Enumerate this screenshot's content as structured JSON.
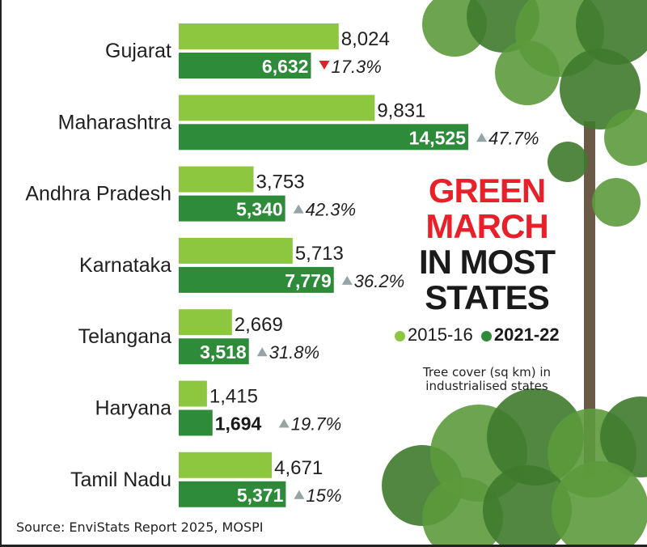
{
  "title": {
    "line1": "GREEN",
    "line2": "MARCH",
    "line3": "IN MOST",
    "line4": "STATES"
  },
  "subtitle": "Tree cover (sq km)  in industrialised states",
  "source": "Source: EnviStats Report 2025, MOSPI",
  "colors": {
    "series_2015": "#8dc63f",
    "series_2021": "#2e8b3a",
    "down": "#e0202a",
    "up": "#95a5a6",
    "title_red": "#e8202a"
  },
  "chart_data": {
    "type": "bar",
    "orientation": "horizontal",
    "categories": [
      "Gujarat",
      "Maharashtra",
      "Andhra Pradesh",
      "Karnataka",
      "Telangana",
      "Haryana",
      "Tamil Nadu"
    ],
    "series": [
      {
        "name": "2015-16",
        "values": [
          8024,
          9831,
          3753,
          5713,
          2669,
          1415,
          4671
        ],
        "labels": [
          "8,024",
          "9,831",
          "3,753",
          "5,713",
          "2,669",
          "1,415",
          "4,671"
        ]
      },
      {
        "name": "2021-22",
        "values": [
          6632,
          14525,
          5340,
          7779,
          3518,
          1694,
          5371
        ],
        "labels": [
          "6,632",
          "14,525",
          "5,340",
          "7,779",
          "3,518",
          "1,694",
          "5,371"
        ]
      }
    ],
    "change": [
      {
        "label": "17.3%",
        "direction": "down"
      },
      {
        "label": "47.7%",
        "direction": "up"
      },
      {
        "label": "42.3%",
        "direction": "up"
      },
      {
        "label": "36.2%",
        "direction": "up"
      },
      {
        "label": "31.8%",
        "direction": "up"
      },
      {
        "label": "19.7%",
        "direction": "up"
      },
      {
        "label": "15%",
        "direction": "up"
      }
    ],
    "legend_placement": "right",
    "grid": false
  }
}
